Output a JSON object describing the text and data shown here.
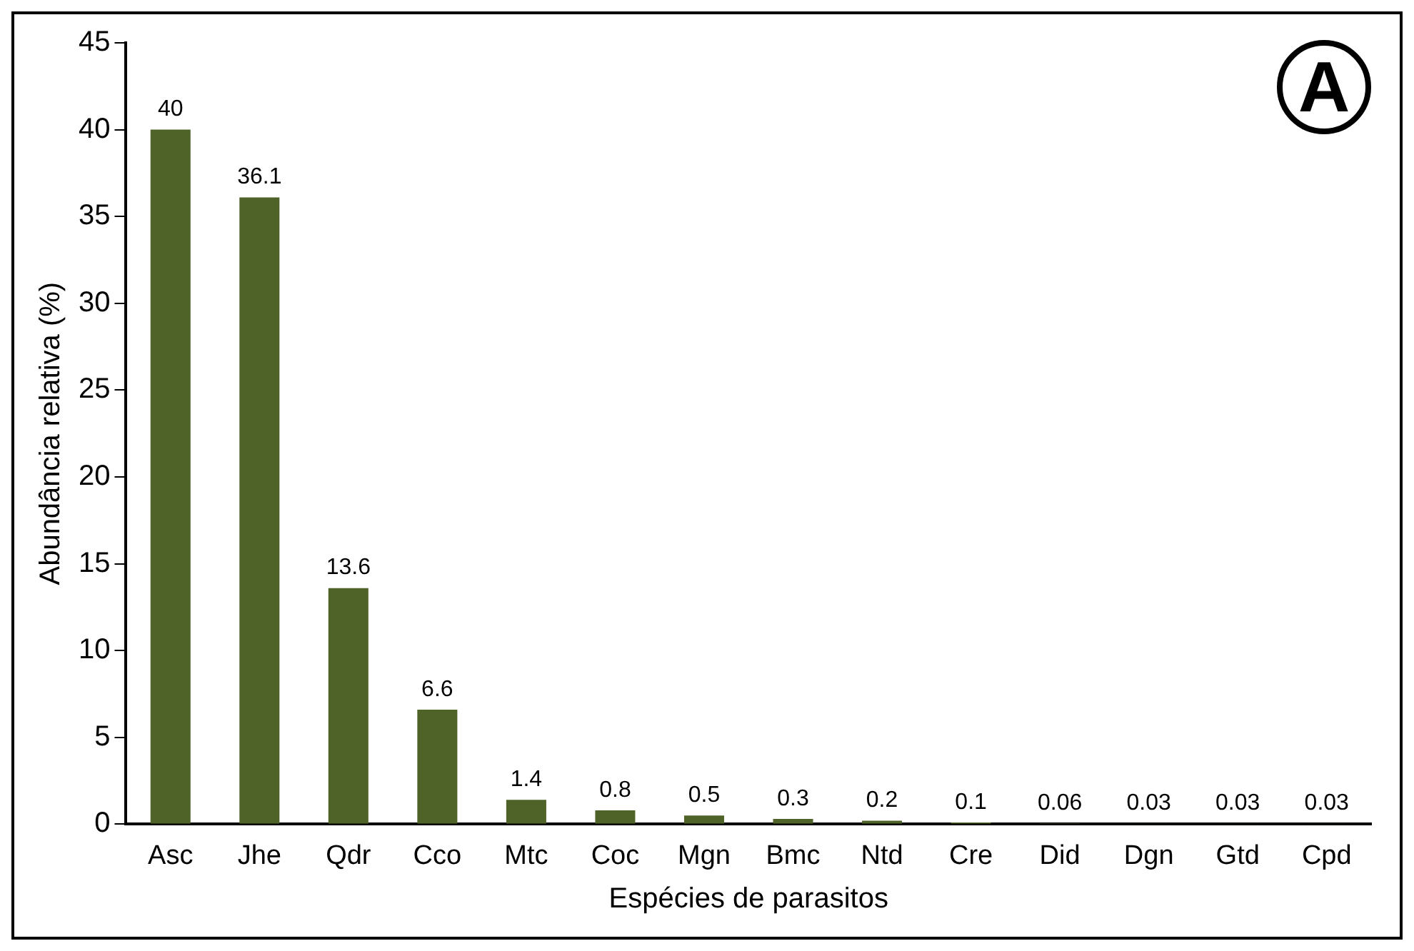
{
  "chart_data": {
    "type": "bar",
    "xlabel": "Espécies de parasitos",
    "ylabel": "Abundância relativa (%)",
    "categories": [
      "Asc",
      "Jhe",
      "Qdr",
      "Cco",
      "Mtc",
      "Coc",
      "Mgn",
      "Bmc",
      "Ntd",
      "Cre",
      "Did",
      "Dgn",
      "Gtd",
      "Cpd"
    ],
    "values": [
      40,
      36.1,
      13.6,
      6.6,
      1.4,
      0.8,
      0.5,
      0.3,
      0.2,
      0.1,
      0.06,
      0.03,
      0.03,
      0.03
    ],
    "color": "#4f6228",
    "ylim": [
      0,
      45
    ],
    "yticks": [
      0,
      5,
      10,
      15,
      20,
      25,
      30,
      35,
      40,
      45
    ],
    "data_labels": true,
    "grid": false,
    "legend": false,
    "annotations": [
      "A"
    ]
  }
}
